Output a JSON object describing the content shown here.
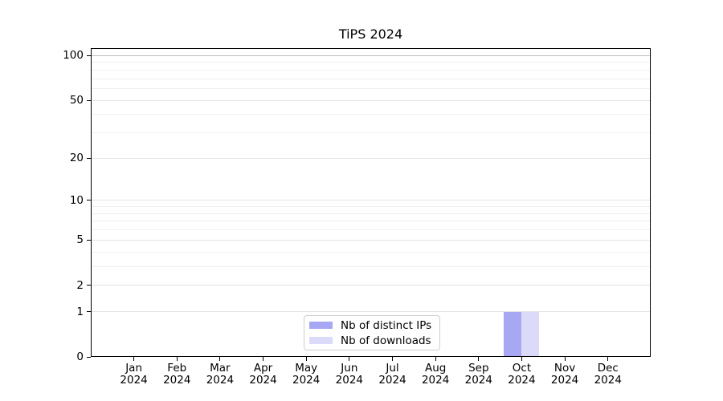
{
  "title": "TiPS 2024",
  "chart_data": {
    "type": "bar",
    "title": "TiPS 2024",
    "xlabel": "",
    "ylabel": "",
    "x_tick_labels": [
      {
        "month": "Jan",
        "year": "2024"
      },
      {
        "month": "Feb",
        "year": "2024"
      },
      {
        "month": "Mar",
        "year": "2024"
      },
      {
        "month": "Apr",
        "year": "2024"
      },
      {
        "month": "May",
        "year": "2024"
      },
      {
        "month": "Jun",
        "year": "2024"
      },
      {
        "month": "Jul",
        "year": "2024"
      },
      {
        "month": "Aug",
        "year": "2024"
      },
      {
        "month": "Sep",
        "year": "2024"
      },
      {
        "month": "Oct",
        "year": "2024"
      },
      {
        "month": "Nov",
        "year": "2024"
      },
      {
        "month": "Dec",
        "year": "2024"
      }
    ],
    "series": [
      {
        "name": "Nb of distinct IPs",
        "color": "#a7a7f4",
        "values": [
          0,
          0,
          0,
          0,
          0,
          0,
          0,
          0,
          0,
          1,
          0,
          0
        ]
      },
      {
        "name": "Nb of downloads",
        "color": "#dbdbf9",
        "values": [
          0,
          0,
          0,
          0,
          0,
          0,
          0,
          0,
          0,
          1,
          0,
          0
        ]
      }
    ],
    "y_axis": {
      "scale": "log1p",
      "ticks": [
        0,
        1,
        2,
        5,
        10,
        20,
        50,
        100
      ],
      "minor_gridlines": [
        3,
        4,
        6,
        7,
        8,
        9,
        30,
        40,
        60,
        70,
        80,
        90
      ],
      "ylim": [
        0,
        110
      ]
    },
    "grid": "horizontal",
    "legend_position": "lower center"
  },
  "colors": {
    "grid_minor": "#f0f0f0",
    "grid_major": "#e4e4e4",
    "grid_top": "#bdbdbd",
    "spine": "#000000",
    "background": "#ffffff",
    "legend_border": "#cfcfcf"
  }
}
